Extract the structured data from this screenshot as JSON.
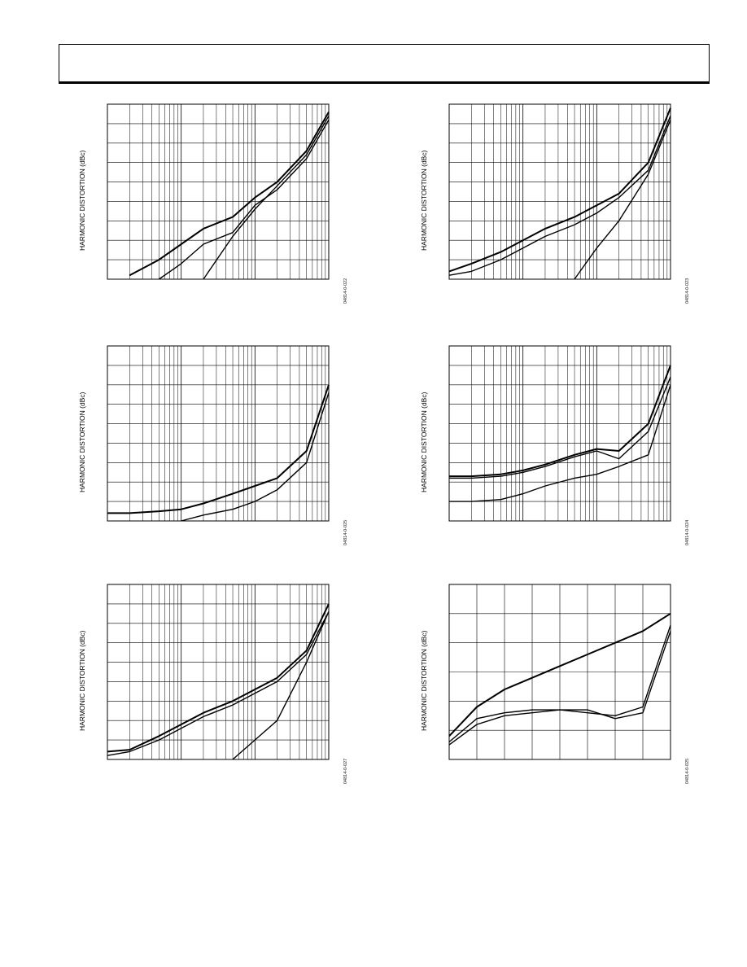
{
  "page": {
    "ylabel_db": "HARMONIC DISTORTION (dBc)"
  },
  "figures": [
    {
      "id": "fig1",
      "figure_id": "04814-0-022",
      "chart_data": {
        "type": "line",
        "xscale": "log",
        "ylabel": "HARMONIC DISTORTION (dBc)",
        "x": [
          1,
          2,
          5,
          10,
          20,
          50,
          100,
          200,
          500,
          1000
        ],
        "series": [
          {
            "values": [
              null,
              -98,
              -90,
              -82,
              -74,
              -68,
              -58,
              -50,
              -34,
              -14
            ]
          },
          {
            "values": [
              null,
              null,
              -100,
              -92,
              -82,
              -76,
              -62,
              -54,
              -38,
              -18
            ]
          },
          {
            "values": [
              null,
              null,
              null,
              null,
              -100,
              -78,
              -64,
              -52,
              -36,
              -16
            ]
          }
        ],
        "ylim": [
          -100,
          -10
        ],
        "grid": true
      }
    },
    {
      "id": "fig2",
      "figure_id": "04814-0-023",
      "chart_data": {
        "type": "line",
        "xscale": "log",
        "ylabel": "HARMONIC DISTORTION (dBc)",
        "x": [
          1,
          2,
          5,
          10,
          20,
          50,
          100,
          200,
          500,
          1000
        ],
        "series": [
          {
            "values": [
              -96,
              -92,
              -86,
              -80,
              -74,
              -68,
              -62,
              -56,
              -40,
              -12
            ]
          },
          {
            "values": [
              -98,
              -96,
              -90,
              -84,
              -78,
              -72,
              -66,
              -58,
              -44,
              -16
            ]
          },
          {
            "values": [
              null,
              null,
              null,
              null,
              null,
              -100,
              -84,
              -70,
              -46,
              -18
            ]
          }
        ],
        "ylim": [
          -100,
          -10
        ],
        "grid": true
      }
    },
    {
      "id": "fig3",
      "figure_id": "04814-0-025",
      "chart_data": {
        "type": "line",
        "xscale": "log",
        "ylabel": "HARMONIC DISTORTION (dBc)",
        "x": [
          1,
          2,
          5,
          10,
          20,
          50,
          100,
          200,
          500,
          1000
        ],
        "series": [
          {
            "values": [
              -96,
              -96,
              -95,
              -94,
              -91,
              -86,
              -82,
              -78,
              -64,
              -30
            ]
          },
          {
            "values": [
              null,
              null,
              null,
              -100,
              -97,
              -94,
              -90,
              -84,
              -70,
              -34
            ]
          }
        ],
        "ylim": [
          -100,
          -10
        ],
        "grid": true
      }
    },
    {
      "id": "fig4",
      "figure_id": "04814-0-024",
      "chart_data": {
        "type": "line",
        "xscale": "log",
        "ylabel": "HARMONIC DISTORTION (dBc)",
        "x": [
          1,
          2,
          5,
          10,
          20,
          50,
          100,
          200,
          500,
          1000
        ],
        "series": [
          {
            "values": [
              -77,
              -77,
              -76,
              -74,
              -71,
              -66,
              -63,
              -64,
              -50,
              -20
            ]
          },
          {
            "values": [
              -78,
              -78,
              -77,
              -75,
              -72,
              -67,
              -64,
              -68,
              -54,
              -26
            ]
          },
          {
            "values": [
              -90,
              -90,
              -89,
              -86,
              -82,
              -78,
              -76,
              -72,
              -66,
              -30
            ]
          }
        ],
        "ylim": [
          -100,
          -10
        ],
        "grid": true
      }
    },
    {
      "id": "fig5",
      "figure_id": "04814-0-027",
      "chart_data": {
        "type": "line",
        "xscale": "log",
        "ylabel": "HARMONIC DISTORTION (dBc)",
        "x": [
          1,
          2,
          5,
          10,
          20,
          50,
          100,
          200,
          500,
          1000
        ],
        "series": [
          {
            "values": [
              -96,
              -95,
              -88,
              -82,
              -76,
              -70,
              -64,
              -58,
              -44,
              -20
            ]
          },
          {
            "values": [
              -98,
              -96,
              -90,
              -84,
              -78,
              -72,
              -66,
              -60,
              -46,
              -24
            ]
          },
          {
            "values": [
              null,
              null,
              null,
              null,
              null,
              -100,
              -90,
              -80,
              -50,
              -24
            ]
          }
        ],
        "ylim": [
          -100,
          -10
        ],
        "grid": true
      }
    },
    {
      "id": "fig6",
      "figure_id": "04814-0-025",
      "chart_data": {
        "type": "line",
        "xscale": "linear",
        "ylabel": "HARMONIC DISTORTION (dBc)",
        "x": [
          0,
          1,
          2,
          3,
          4,
          5,
          6,
          7,
          8
        ],
        "series": [
          {
            "values": [
              -92,
              -82,
              -76,
              -72,
              -68,
              -64,
              -60,
              -56,
              -50
            ]
          },
          {
            "values": [
              -94,
              -86,
              -84,
              -83,
              -83,
              -84,
              -85,
              -82,
              -54
            ]
          },
          {
            "values": [
              -95,
              -88,
              -85,
              -84,
              -83,
              -83,
              -86,
              -84,
              -56
            ]
          }
        ],
        "ylim": [
          -100,
          -40
        ],
        "grid": true
      }
    }
  ]
}
